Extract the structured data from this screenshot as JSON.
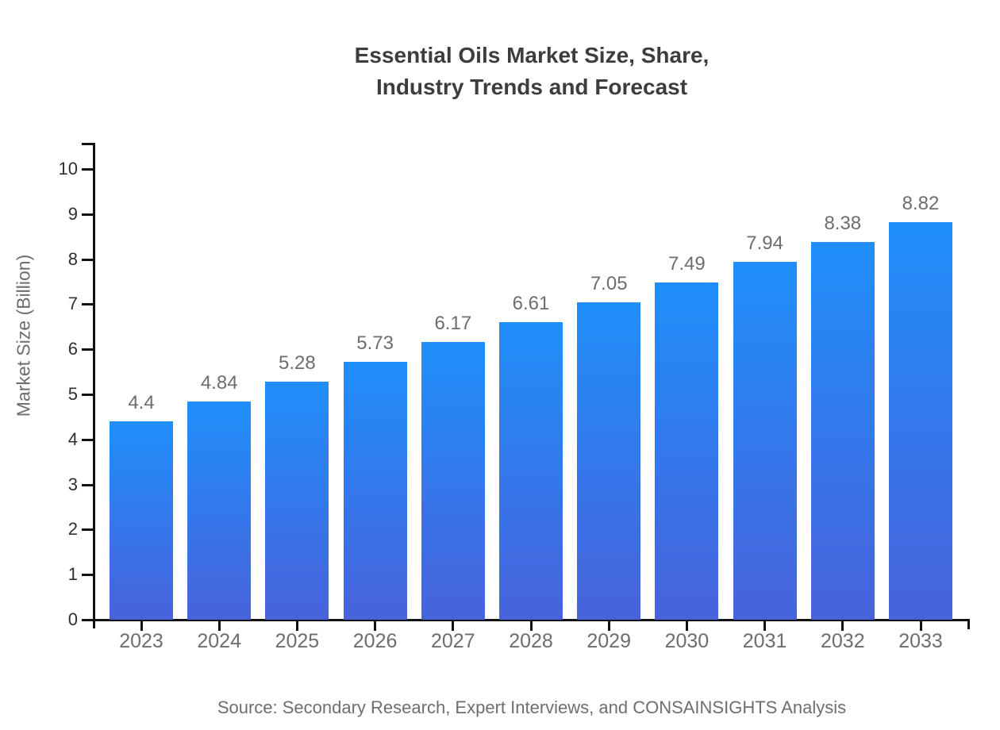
{
  "chart_data": {
    "type": "bar",
    "title_line1": "Essential Oils Market Size, Share,",
    "title_line2": "Industry Trends and Forecast",
    "ylabel": "Market Size (Billion)",
    "xlabel": "",
    "categories": [
      "2023",
      "2024",
      "2025",
      "2026",
      "2027",
      "2028",
      "2029",
      "2030",
      "2031",
      "2032",
      "2033"
    ],
    "values": [
      4.4,
      4.84,
      5.28,
      5.73,
      6.17,
      6.61,
      7.05,
      7.49,
      7.94,
      8.38,
      8.82
    ],
    "value_labels": [
      "4.4",
      "4.84",
      "5.28",
      "5.73",
      "6.17",
      "6.61",
      "7.05",
      "7.49",
      "7.94",
      "8.38",
      "8.82"
    ],
    "ylim": [
      0,
      10
    ],
    "yticks": [
      0,
      1,
      2,
      3,
      4,
      5,
      6,
      7,
      8,
      9,
      10
    ],
    "grid": false,
    "legend_position": "none",
    "source": "Source: Secondary Research, Expert Interviews, and CONSAINSIGHTS Analysis",
    "colors": {
      "bar_gradient_top": "#1f8ffa",
      "bar_gradient_bottom": "#4862dc",
      "axis": "#111111",
      "title_text": "#3d3d3d",
      "label_text": "#6d6d6d",
      "ytick_text": "#2f2f2f",
      "background": "#ffffff"
    }
  }
}
